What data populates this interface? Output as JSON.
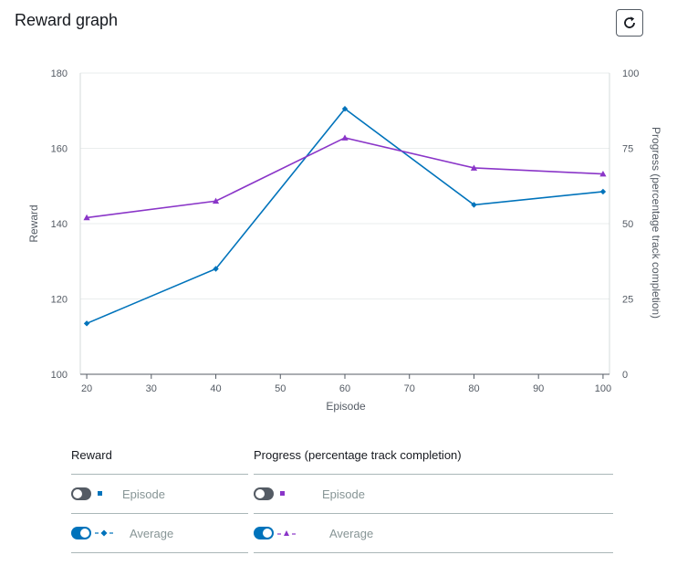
{
  "header": {
    "title": "Reward graph"
  },
  "chart_data": {
    "type": "line",
    "xlabel": "Episode",
    "ylabel": "Reward",
    "y2label": "Progress (percentage track completion)",
    "xlim": [
      19,
      101
    ],
    "ylim": [
      100,
      180
    ],
    "y2lim": [
      0,
      100
    ],
    "xticks": [
      20,
      30,
      40,
      50,
      60,
      70,
      80,
      90,
      100
    ],
    "yticks": [
      100,
      120,
      140,
      160,
      180
    ],
    "y2ticks": [
      0,
      25,
      50,
      75,
      100
    ],
    "grid": "horizontal",
    "series": [
      {
        "name": "Average",
        "group": "Reward",
        "axis": "left",
        "color": "#0073bb",
        "marker": "diamond",
        "x": [
          20,
          40,
          60,
          80,
          100
        ],
        "y": [
          113.5,
          128,
          170.5,
          145,
          148.5
        ]
      },
      {
        "name": "Average",
        "group": "Progress (percentage track completion)",
        "axis": "right",
        "color": "#8a35c8",
        "marker": "triangle",
        "x": [
          20,
          40,
          60,
          80,
          100
        ],
        "y": [
          52,
          57.5,
          78.5,
          68.5,
          66.5
        ]
      }
    ]
  },
  "legend": {
    "reward": {
      "title": "Reward",
      "episode_label": "Episode",
      "episode_on": false,
      "average_label": "Average",
      "average_on": true,
      "color": "#0073bb"
    },
    "progress": {
      "title": "Progress (percentage track completion)",
      "episode_label": "Episode",
      "episode_on": false,
      "average_label": "Average",
      "average_on": true,
      "color": "#8a35c8"
    }
  }
}
